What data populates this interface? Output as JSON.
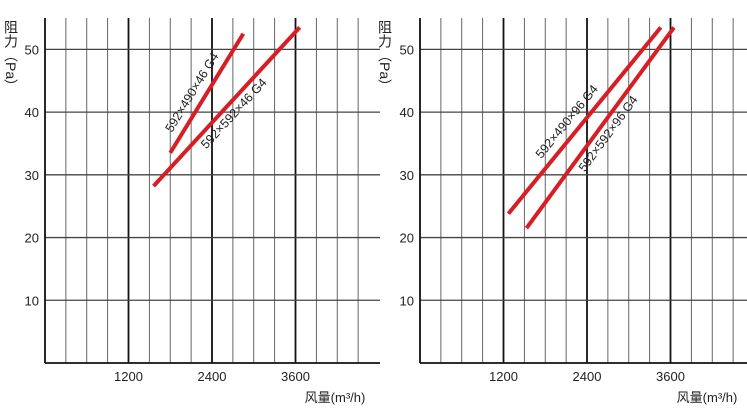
{
  "chart_data": [
    {
      "type": "line",
      "ylabel": "阻力（Pa）",
      "xlabel": "风量(m³/h)",
      "x_ticks": [
        "1200",
        "2400",
        "3600"
      ],
      "y_ticks": [
        "10",
        "20",
        "30",
        "40",
        "50"
      ],
      "xlim": [
        0,
        4800
      ],
      "ylim": [
        0,
        55
      ],
      "grid": true,
      "series": [
        {
          "name": "592×490×46 G4",
          "x": [
            1800,
            2850
          ],
          "y": [
            33.5,
            52.5
          ],
          "color": "#d81e25"
        },
        {
          "name": "592×592×46 G4",
          "x": [
            1560,
            3660
          ],
          "y": [
            28.2,
            53.5
          ],
          "color": "#d81e25"
        }
      ]
    },
    {
      "type": "line",
      "ylabel": "阻力（Pa）",
      "xlabel": "风量(m³/h)",
      "x_ticks": [
        "1200",
        "2400",
        "3600"
      ],
      "y_ticks": [
        "10",
        "20",
        "30",
        "40",
        "50"
      ],
      "xlim": [
        0,
        4800
      ],
      "ylim": [
        0,
        55
      ],
      "grid": true,
      "series": [
        {
          "name": "592×490×96 G4",
          "x": [
            1270,
            3460
          ],
          "y": [
            23.8,
            53.5
          ],
          "color": "#d81e25"
        },
        {
          "name": "592×592×96 G4",
          "x": [
            1530,
            3650
          ],
          "y": [
            21.5,
            53.5
          ],
          "color": "#d81e25"
        }
      ]
    }
  ]
}
